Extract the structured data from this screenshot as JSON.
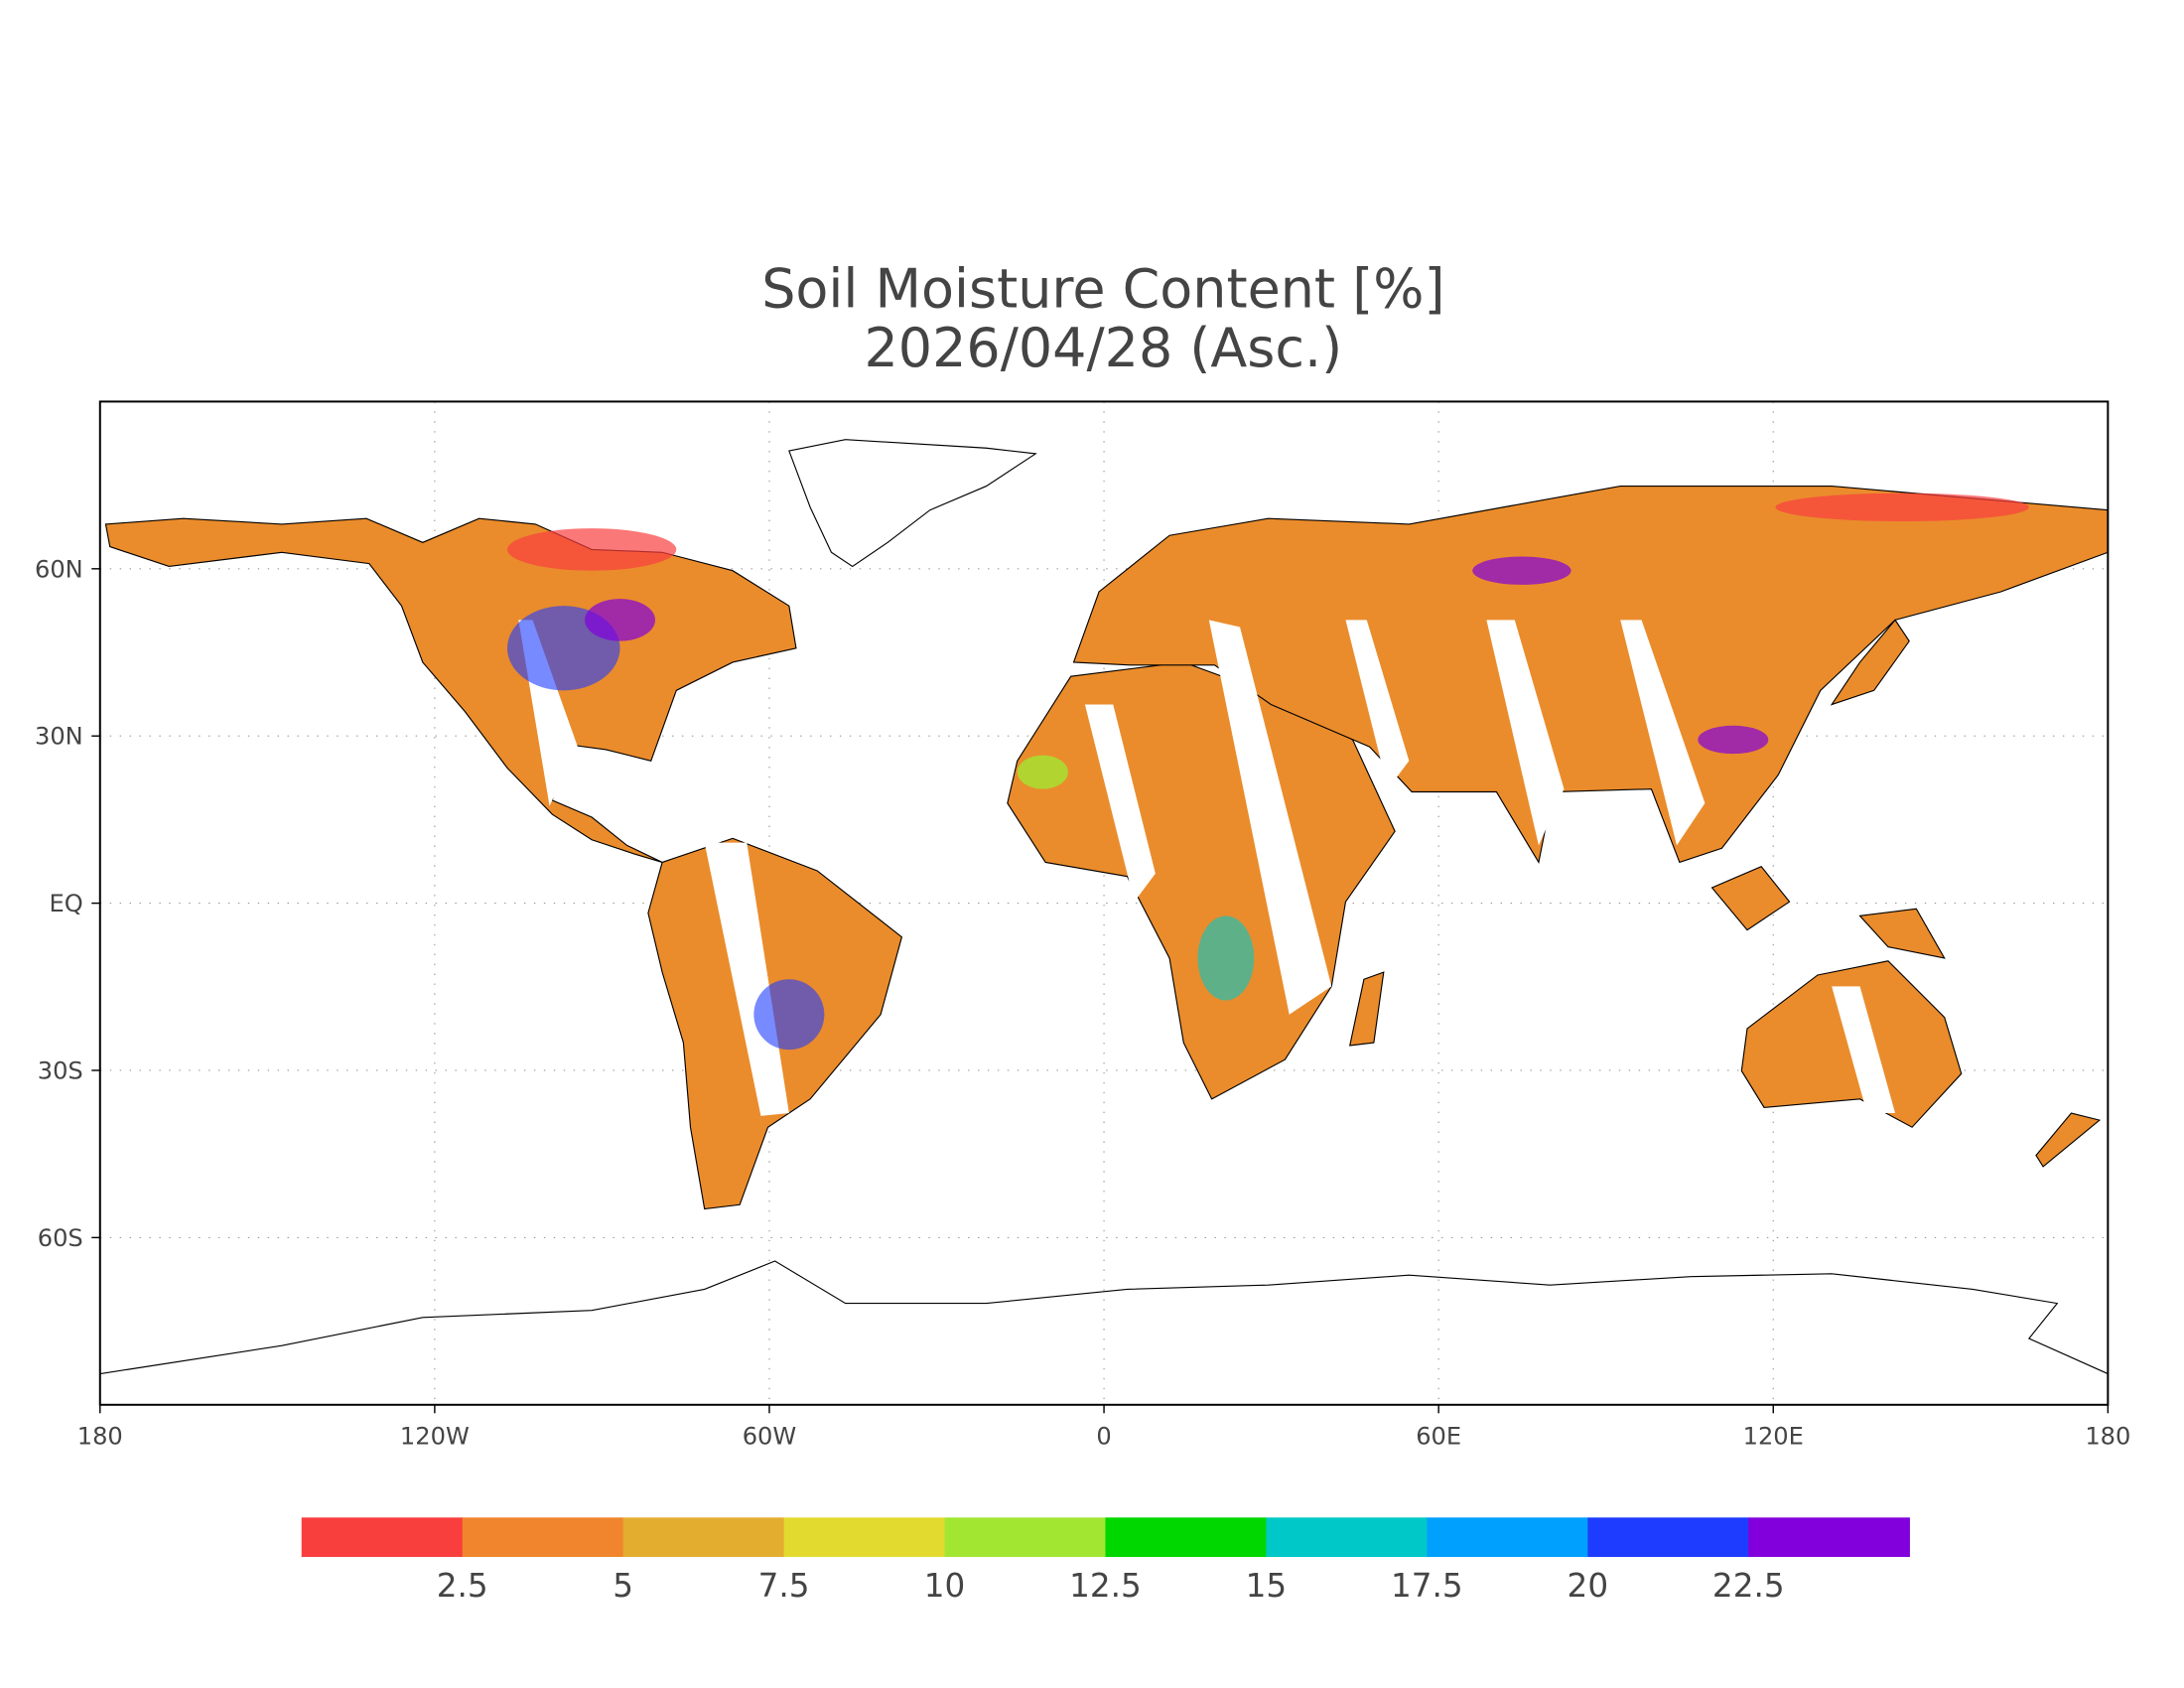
{
  "title": "Soil Moisture Content [%]",
  "subtitle": "2026/04/28 (Asc.)",
  "map": {
    "xlim": [
      -180,
      180
    ],
    "ylim": [
      -90,
      90
    ],
    "xticks": [
      {
        "value": -180,
        "label": "180"
      },
      {
        "value": -120,
        "label": "120W"
      },
      {
        "value": -60,
        "label": "60W"
      },
      0,
      {
        "value": 60,
        "label": "60E"
      },
      {
        "value": 120,
        "label": "120E"
      },
      180
    ],
    "yticks": [
      {
        "value": 60,
        "label": "60N"
      },
      {
        "value": 30,
        "label": "30N"
      },
      {
        "value": 0,
        "label": "EQ"
      },
      {
        "value": -30,
        "label": "30S"
      },
      {
        "value": -60,
        "label": "60S"
      }
    ],
    "grid": true
  },
  "colorbar": {
    "lim": [
      0,
      25
    ],
    "ticks": [
      2.5,
      5,
      7.5,
      10,
      12.5,
      15,
      17.5,
      20,
      22.5
    ],
    "colors": [
      "#f93e3e",
      "#f0852d",
      "#e3ad30",
      "#e3da2f",
      "#a2e632",
      "#00d700",
      "#00c8c8",
      "#00a0ff",
      "#1e3cff",
      "#8200dc"
    ]
  }
}
